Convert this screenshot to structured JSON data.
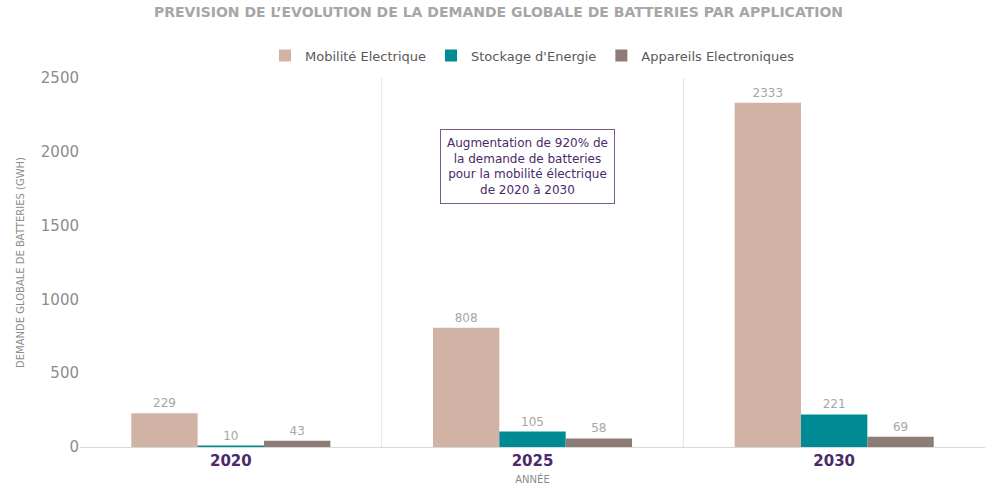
{
  "chart_data": {
    "type": "bar",
    "title": "PREVISION DE L’EVOLUTION DE LA DEMANDE GLOBALE DE BATTERIES PAR APPLICATION",
    "x_label": "ANNÉE",
    "y_label": "DEMANDE GLOBALE DE BATTERIES (GWH)",
    "categories": [
      "2020",
      "2025",
      "2030"
    ],
    "series": [
      {
        "name": "Mobilité Electrique",
        "color": "#d1b3a5",
        "values": [
          229,
          808,
          2333
        ]
      },
      {
        "name": "Stockage d'Energie",
        "color": "#008b94",
        "values": [
          10,
          105,
          221
        ]
      },
      {
        "name": "Appareils Electroniques",
        "color": "#8c7c75",
        "values": [
          43,
          58,
          69
        ]
      }
    ],
    "ylim": [
      0,
      2500
    ],
    "yticks": [
      0,
      500,
      1000,
      1500,
      2000,
      2500
    ],
    "grid": false,
    "legend": "top",
    "data_labels": true,
    "annotation": [
      "Augmentation de 920% de",
      "la demande de batteries",
      "pour la mobilité électrique",
      "de 2020 à 2030"
    ]
  }
}
